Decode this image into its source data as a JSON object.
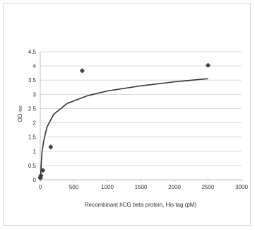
{
  "chart_data": {
    "type": "scatter",
    "xlabel": "Recombinant hCG beta protein, His tag (pM)",
    "ylabel": "OD",
    "ylabel_subscript": "450",
    "xlim": [
      0,
      3000
    ],
    "ylim": [
      0,
      4.5
    ],
    "x_ticks": [
      "0",
      "500",
      "1000",
      "1500",
      "2000",
      "2500",
      "3000"
    ],
    "y_ticks": [
      "0",
      "0.5",
      "1",
      "1.5",
      "2",
      "2.5",
      "3",
      "3.5",
      "4",
      "4.5"
    ],
    "grid": "horizontal",
    "legend": "none",
    "series": [
      {
        "marker": "diamond",
        "color": "#404040",
        "x": [
          1,
          2.5,
          10,
          39,
          156,
          625,
          2500
        ],
        "y": [
          0.06,
          0.09,
          0.15,
          0.33,
          1.15,
          3.83,
          4.02
        ]
      }
    ],
    "fit": {
      "type": "logarithmic trendline",
      "color": "#333333",
      "x": [
        3,
        10,
        25,
        50,
        100,
        200,
        400,
        700,
        1000,
        1500,
        2000,
        2500
      ],
      "y": [
        0.0,
        0.35,
        0.95,
        1.35,
        1.85,
        2.3,
        2.68,
        2.95,
        3.12,
        3.3,
        3.44,
        3.55
      ]
    }
  }
}
